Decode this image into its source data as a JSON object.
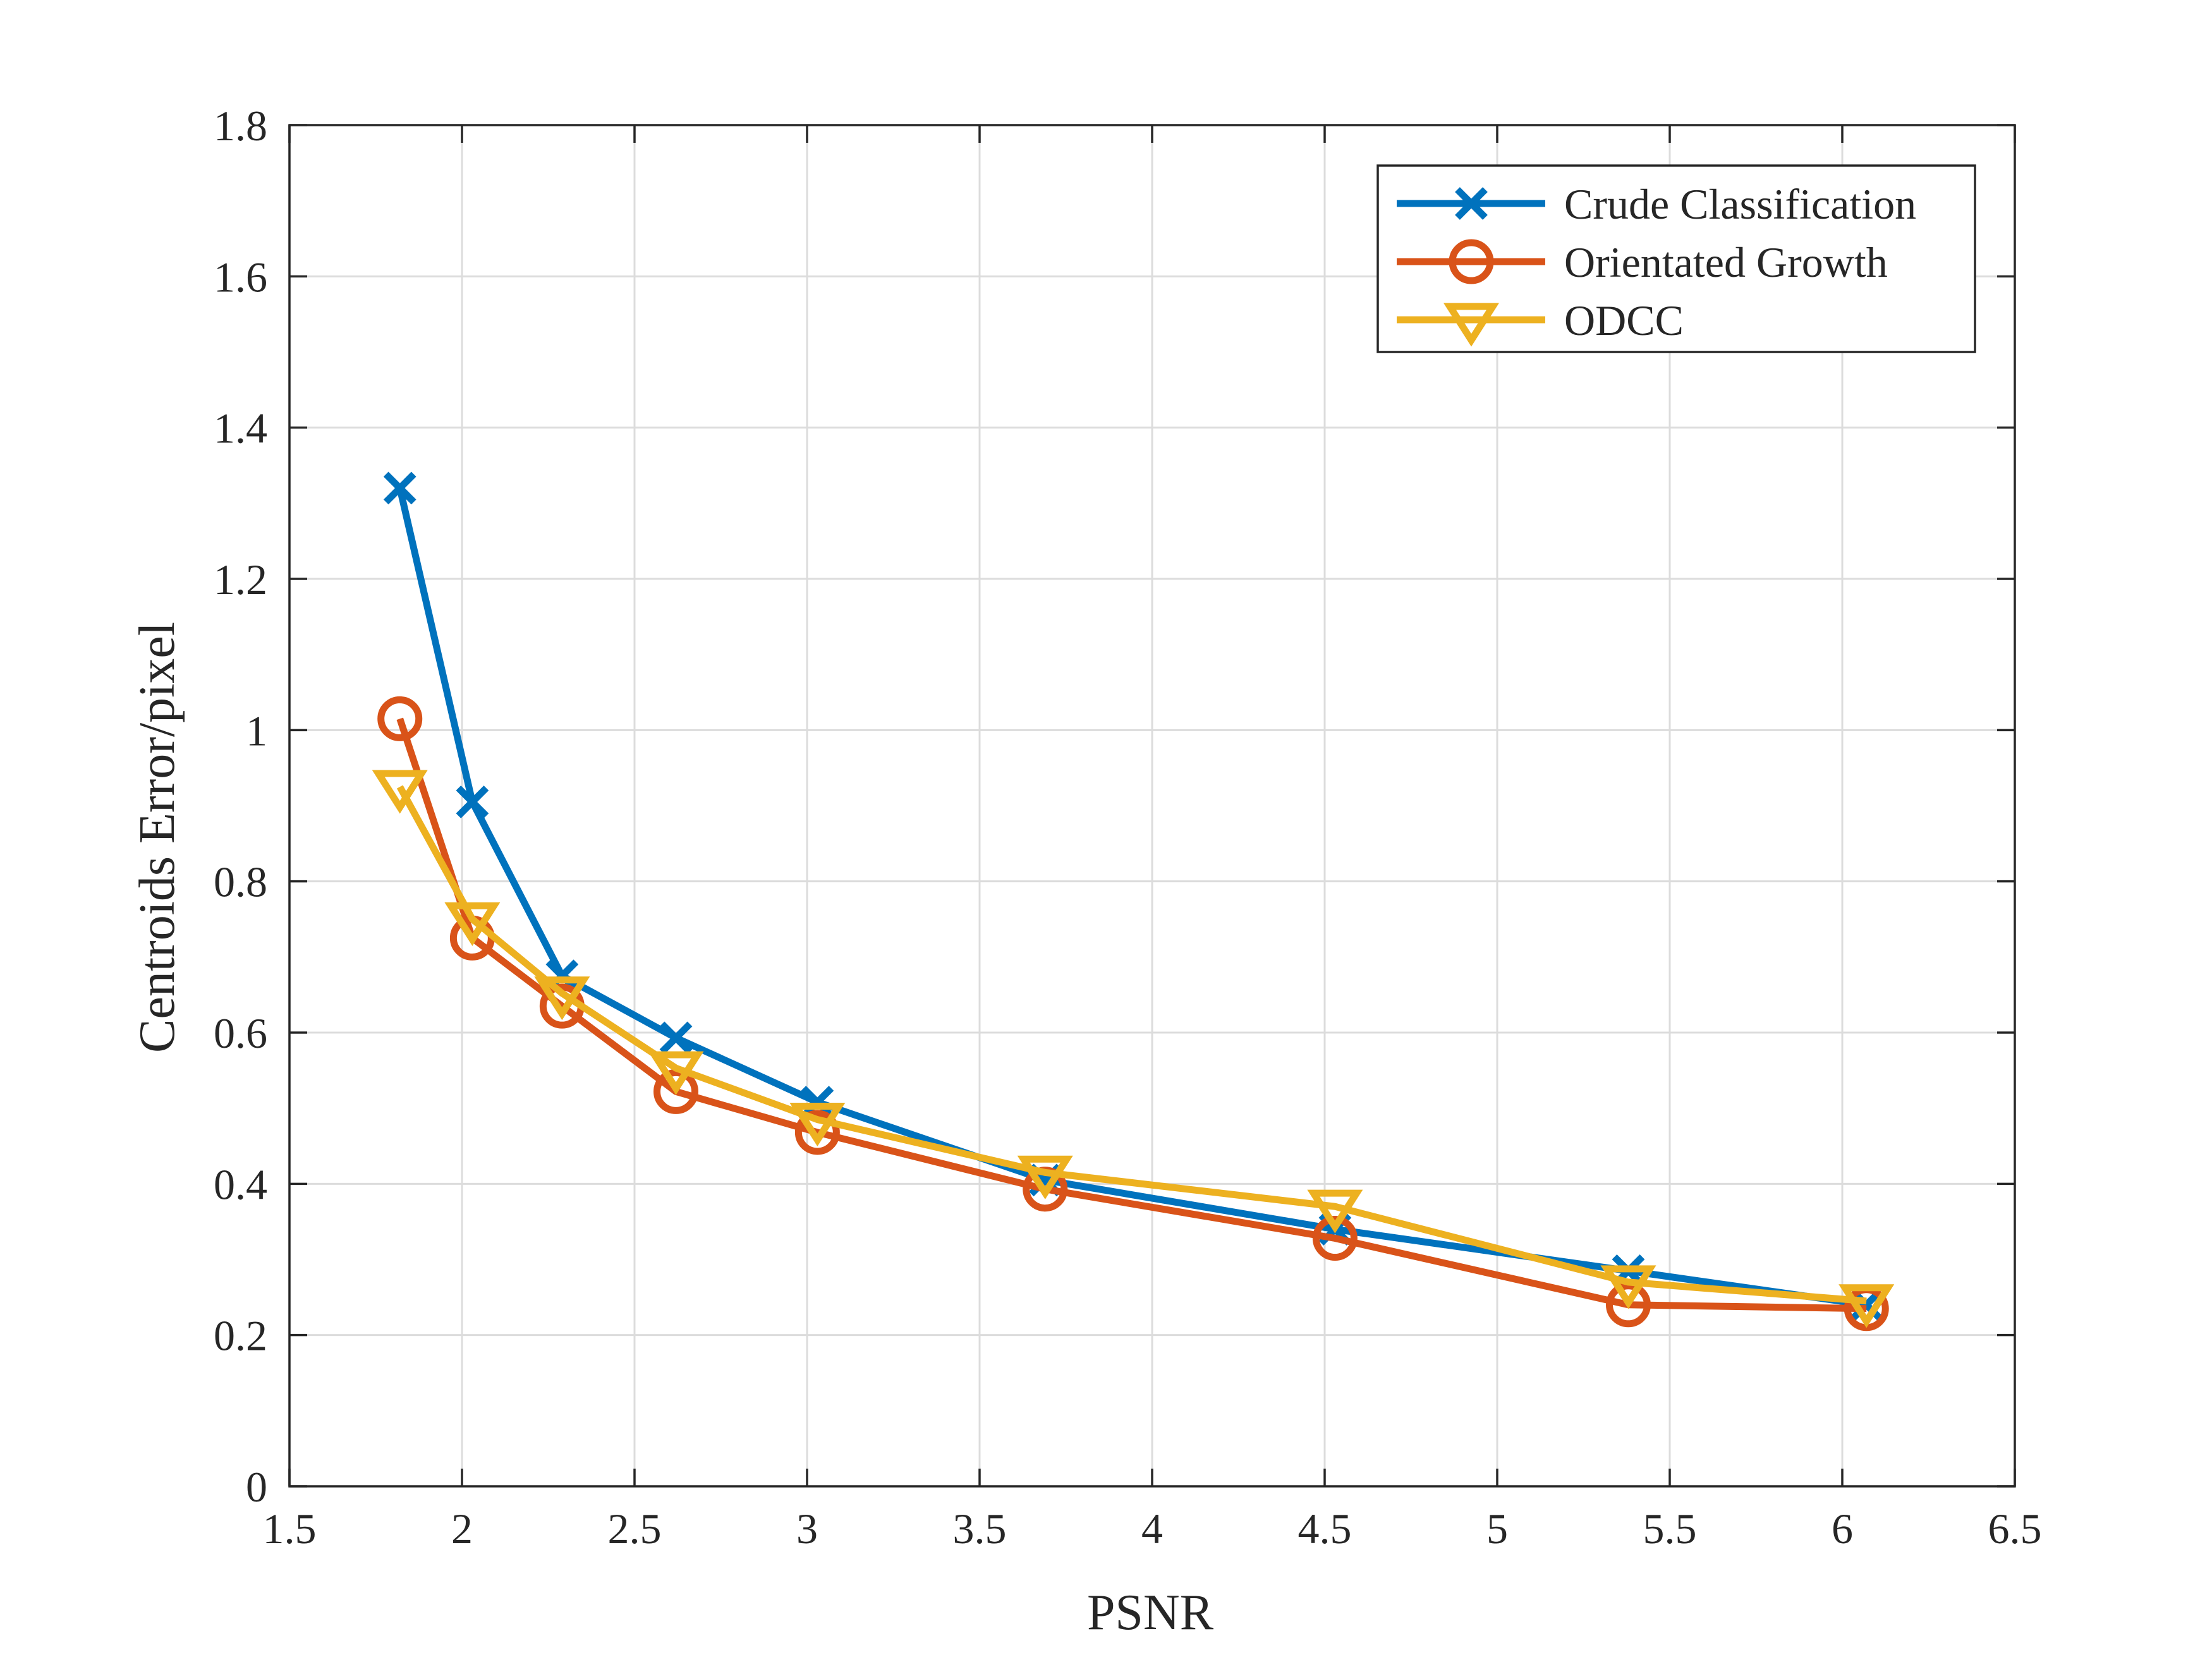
{
  "chart_data": {
    "type": "line",
    "title": "",
    "xlabel": "PSNR",
    "ylabel": "Centroids Error/pixel",
    "xlim": [
      1.5,
      6.5
    ],
    "ylim": [
      0,
      1.8
    ],
    "xticks": [
      1.5,
      2,
      2.5,
      3,
      3.5,
      4,
      4.5,
      5,
      5.5,
      6,
      6.5
    ],
    "xtick_labels": [
      "1.5",
      "2",
      "2.5",
      "3",
      "3.5",
      "4",
      "4.5",
      "5",
      "5.5",
      "6",
      "6.5"
    ],
    "yticks": [
      0,
      0.2,
      0.4,
      0.6,
      0.8,
      1.0,
      1.2,
      1.4,
      1.6,
      1.8
    ],
    "ytick_labels": [
      "0",
      "0.2",
      "0.4",
      "0.6",
      "0.8",
      "1",
      "1.2",
      "1.4",
      "1.6",
      "1.8"
    ],
    "grid": true,
    "legend_position": "top-right",
    "series": [
      {
        "name": "Crude Classification",
        "color": "#0072BD",
        "marker": "x",
        "x": [
          1.82,
          2.03,
          2.29,
          2.62,
          3.03,
          3.69,
          4.53,
          5.38,
          6.07
        ],
        "y": [
          1.32,
          0.905,
          0.675,
          0.593,
          0.508,
          0.405,
          0.34,
          0.285,
          0.24
        ]
      },
      {
        "name": "Orientated Growth",
        "color": "#D95319",
        "marker": "circle",
        "x": [
          1.82,
          2.03,
          2.29,
          2.62,
          3.03,
          3.69,
          4.53,
          5.38,
          6.07
        ],
        "y": [
          1.015,
          0.725,
          0.635,
          0.522,
          0.468,
          0.393,
          0.328,
          0.24,
          0.235
        ]
      },
      {
        "name": "ODCC",
        "color": "#EDB120",
        "marker": "triangle-down",
        "x": [
          1.82,
          2.03,
          2.29,
          2.62,
          3.03,
          3.69,
          4.53,
          5.38,
          6.07
        ],
        "y": [
          0.925,
          0.75,
          0.652,
          0.553,
          0.485,
          0.415,
          0.37,
          0.27,
          0.245
        ]
      }
    ]
  }
}
